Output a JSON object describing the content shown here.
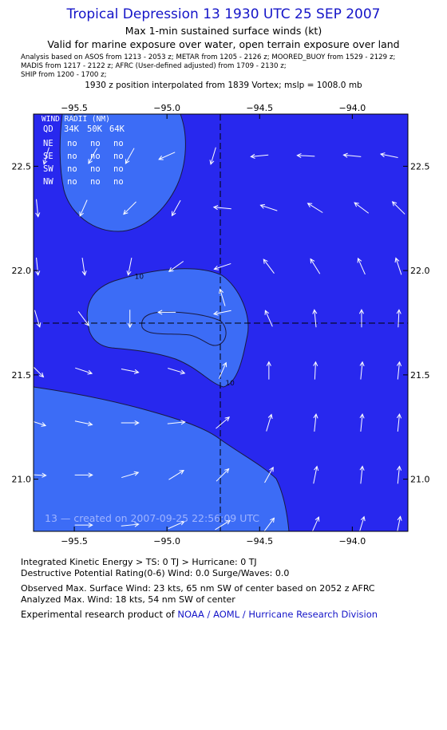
{
  "header": {
    "title": "Tropical Depression 13 1930 UTC 25 SEP 2007",
    "subtitle1": "Max 1-min sustained surface winds (kt)",
    "subtitle2": "Valid for marine exposure over water, open terrain exposure over land",
    "analysis_line1": "Analysis based on   ASOS from 1213 - 2053 z;   METAR from 1205 - 2126 z;   MOORED_BUOY from 1529 - 2129 z;",
    "analysis_line2": "MADIS from 1217 - 2122 z;   AFRC (User-defined adjusted) from 1709 - 2130 z;",
    "analysis_line3": "SHIP from 1200 - 1700 z;",
    "interpolation": "1930 z position interpolated from 1839 Vortex; mslp = 1008.0 mb"
  },
  "wind_radii": {
    "title": "WIND RADII (NM)",
    "columns": [
      "QD",
      "34K",
      "50K",
      "64K"
    ],
    "rows": [
      {
        "quadrant": "NE",
        "r34": "no",
        "r50": "no",
        "r64": "no"
      },
      {
        "quadrant": "SE",
        "r34": "no",
        "r50": "no",
        "r64": "no"
      },
      {
        "quadrant": "SW",
        "r34": "no",
        "r50": "no",
        "r64": "no"
      },
      {
        "quadrant": "NW",
        "r34": "no",
        "r50": "no",
        "r64": "no"
      }
    ]
  },
  "chart_data": {
    "type": "contour",
    "title": "Tropical Depression 13 1930 UTC 25 SEP 2007",
    "xlabel": "",
    "ylabel": "",
    "xlim": [
      -95.72,
      -93.7
    ],
    "ylim": [
      20.75,
      22.75
    ],
    "x_ticks": [
      -95.5,
      -95.0,
      -94.5,
      -94.0
    ],
    "x_tick_labels": [
      "−95.5",
      "−95.0",
      "−94.5",
      "−94.0"
    ],
    "y_ticks": [
      21.0,
      21.5,
      22.0,
      22.5
    ],
    "y_tick_labels": [
      "21.0",
      "21.5",
      "22.0",
      "22.5"
    ],
    "center": {
      "lon": -94.7,
      "lat": 21.76
    },
    "contour_labels": [
      {
        "text": "10",
        "lon": -95.15,
        "lat": 21.96
      },
      {
        "text": "10",
        "lon": -94.66,
        "lat": 21.45
      }
    ],
    "colors": {
      "background": "#2828ee",
      "ten_knot_region": "#3c6cf6",
      "contour_line": "#1a1a40",
      "vector": "#ffffff"
    },
    "wind_vectors": [
      {
        "lon": -95.65,
        "lat": 22.55,
        "u": -0.3,
        "v": -1.0
      },
      {
        "lon": -95.4,
        "lat": 22.55,
        "u": -0.5,
        "v": -0.9
      },
      {
        "lon": -95.2,
        "lat": 22.55,
        "u": -0.5,
        "v": -0.9
      },
      {
        "lon": -95.0,
        "lat": 22.55,
        "u": -0.9,
        "v": -0.4
      },
      {
        "lon": -94.75,
        "lat": 22.55,
        "u": -0.3,
        "v": -1.0
      },
      {
        "lon": -94.5,
        "lat": 22.55,
        "u": -1.0,
        "v": -0.1
      },
      {
        "lon": -94.25,
        "lat": 22.55,
        "u": -1.0,
        "v": 0.05
      },
      {
        "lon": -94.0,
        "lat": 22.55,
        "u": -1.0,
        "v": 0.1
      },
      {
        "lon": -93.8,
        "lat": 22.55,
        "u": -1.0,
        "v": 0.2
      },
      {
        "lon": -95.7,
        "lat": 22.3,
        "u": 0.1,
        "v": -1.0
      },
      {
        "lon": -95.45,
        "lat": 22.3,
        "u": -0.4,
        "v": -0.9
      },
      {
        "lon": -95.2,
        "lat": 22.3,
        "u": -0.7,
        "v": -0.7
      },
      {
        "lon": -94.95,
        "lat": 22.3,
        "u": -0.5,
        "v": -0.9
      },
      {
        "lon": -94.7,
        "lat": 22.3,
        "u": -1.0,
        "v": 0.1
      },
      {
        "lon": -94.45,
        "lat": 22.3,
        "u": -0.9,
        "v": 0.3
      },
      {
        "lon": -94.2,
        "lat": 22.3,
        "u": -0.8,
        "v": 0.5
      },
      {
        "lon": -93.95,
        "lat": 22.3,
        "u": -0.8,
        "v": 0.6
      },
      {
        "lon": -93.75,
        "lat": 22.3,
        "u": -0.7,
        "v": 0.7
      },
      {
        "lon": -95.7,
        "lat": 22.02,
        "u": 0.1,
        "v": -1.0
      },
      {
        "lon": -95.45,
        "lat": 22.02,
        "u": 0.15,
        "v": -1.0
      },
      {
        "lon": -95.2,
        "lat": 22.02,
        "u": -0.2,
        "v": -1.0
      },
      {
        "lon": -94.95,
        "lat": 22.02,
        "u": -0.7,
        "v": -0.5
      },
      {
        "lon": -94.7,
        "lat": 22.02,
        "u": -0.9,
        "v": -0.3
      },
      {
        "lon": -94.45,
        "lat": 22.02,
        "u": -0.6,
        "v": 0.8
      },
      {
        "lon": -94.2,
        "lat": 22.02,
        "u": -0.5,
        "v": 0.8
      },
      {
        "lon": -93.95,
        "lat": 22.02,
        "u": -0.4,
        "v": 0.9
      },
      {
        "lon": -93.75,
        "lat": 22.02,
        "u": -0.3,
        "v": 0.9
      },
      {
        "lon": -95.7,
        "lat": 21.77,
        "u": 0.3,
        "v": -1.0
      },
      {
        "lon": -95.45,
        "lat": 21.77,
        "u": 0.6,
        "v": -0.8
      },
      {
        "lon": -95.2,
        "lat": 21.77,
        "u": 0.0,
        "v": -1.0
      },
      {
        "lon": -95.0,
        "lat": 21.8,
        "u": -1.0,
        "v": 0.0
      },
      {
        "lon": -94.7,
        "lat": 21.8,
        "u": -1.0,
        "v": -0.2
      },
      {
        "lon": -94.7,
        "lat": 21.87,
        "u": -0.3,
        "v": 1.0
      },
      {
        "lon": -94.45,
        "lat": 21.77,
        "u": -0.4,
        "v": 0.9
      },
      {
        "lon": -94.2,
        "lat": 21.77,
        "u": -0.1,
        "v": 1.0
      },
      {
        "lon": -93.95,
        "lat": 21.77,
        "u": 0.0,
        "v": 1.0
      },
      {
        "lon": -93.75,
        "lat": 21.77,
        "u": 0.05,
        "v": 1.0
      },
      {
        "lon": -95.7,
        "lat": 21.52,
        "u": 0.7,
        "v": -0.7
      },
      {
        "lon": -95.45,
        "lat": 21.52,
        "u": 0.9,
        "v": -0.3
      },
      {
        "lon": -95.2,
        "lat": 21.52,
        "u": 1.0,
        "v": -0.2
      },
      {
        "lon": -94.95,
        "lat": 21.52,
        "u": 1.0,
        "v": -0.3
      },
      {
        "lon": -94.7,
        "lat": 21.52,
        "u": 0.4,
        "v": 0.9
      },
      {
        "lon": -94.45,
        "lat": 21.52,
        "u": 0.0,
        "v": 1.0
      },
      {
        "lon": -94.2,
        "lat": 21.52,
        "u": 0.05,
        "v": 1.0
      },
      {
        "lon": -93.95,
        "lat": 21.52,
        "u": 0.1,
        "v": 1.0
      },
      {
        "lon": -93.75,
        "lat": 21.52,
        "u": 0.1,
        "v": 1.0
      },
      {
        "lon": -95.7,
        "lat": 21.27,
        "u": 0.9,
        "v": -0.3
      },
      {
        "lon": -95.45,
        "lat": 21.27,
        "u": 0.95,
        "v": -0.2
      },
      {
        "lon": -95.2,
        "lat": 21.27,
        "u": 1.0,
        "v": 0.0
      },
      {
        "lon": -94.95,
        "lat": 21.27,
        "u": 1.0,
        "v": 0.1
      },
      {
        "lon": -94.7,
        "lat": 21.27,
        "u": 0.7,
        "v": 0.6
      },
      {
        "lon": -94.45,
        "lat": 21.27,
        "u": 0.3,
        "v": 1.0
      },
      {
        "lon": -94.2,
        "lat": 21.27,
        "u": 0.1,
        "v": 1.0
      },
      {
        "lon": -93.95,
        "lat": 21.27,
        "u": 0.1,
        "v": 1.0
      },
      {
        "lon": -93.75,
        "lat": 21.27,
        "u": 0.1,
        "v": 1.0
      },
      {
        "lon": -95.7,
        "lat": 21.02,
        "u": 1.0,
        "v": -0.05
      },
      {
        "lon": -95.45,
        "lat": 21.02,
        "u": 1.0,
        "v": 0.0
      },
      {
        "lon": -95.2,
        "lat": 21.02,
        "u": 1.0,
        "v": 0.3
      },
      {
        "lon": -94.95,
        "lat": 21.02,
        "u": 0.8,
        "v": 0.5
      },
      {
        "lon": -94.7,
        "lat": 21.02,
        "u": 0.7,
        "v": 0.7
      },
      {
        "lon": -94.45,
        "lat": 21.02,
        "u": 0.5,
        "v": 0.9
      },
      {
        "lon": -94.2,
        "lat": 21.02,
        "u": 0.2,
        "v": 1.0
      },
      {
        "lon": -93.95,
        "lat": 21.02,
        "u": 0.1,
        "v": 1.0
      },
      {
        "lon": -93.75,
        "lat": 21.02,
        "u": 0.1,
        "v": 1.0
      },
      {
        "lon": -95.45,
        "lat": 20.78,
        "u": 1.0,
        "v": 0.0
      },
      {
        "lon": -95.2,
        "lat": 20.78,
        "u": 1.0,
        "v": 0.1
      },
      {
        "lon": -94.95,
        "lat": 20.78,
        "u": 0.9,
        "v": 0.4
      },
      {
        "lon": -94.7,
        "lat": 20.78,
        "u": 0.8,
        "v": 0.5
      },
      {
        "lon": -94.45,
        "lat": 20.78,
        "u": 0.6,
        "v": 0.8
      },
      {
        "lon": -94.2,
        "lat": 20.78,
        "u": 0.4,
        "v": 0.9
      },
      {
        "lon": -93.95,
        "lat": 20.78,
        "u": 0.3,
        "v": 1.0
      },
      {
        "lon": -93.75,
        "lat": 20.78,
        "u": 0.2,
        "v": 1.0
      }
    ]
  },
  "created_stamp": "13 — created on 2007-09-25 22:56:09 UTC",
  "footer": {
    "ike": "Integrated Kinetic Energy > TS: 0 TJ   > Hurricane: 0 TJ",
    "dpr": "Destructive Potential Rating(0-6)   Wind: 0.0 Surge/Waves: 0.0",
    "observed": "Observed Max. Surface Wind: 23 kts, 65 nm SW of center based on 2052 z AFRC",
    "analyzed": "Analyzed Max. Wind: 18 kts, 54 nm SW of center",
    "credit_prefix": "Experimental research product of ",
    "credit_link": "NOAA / AOML / Hurricane Research Division"
  }
}
